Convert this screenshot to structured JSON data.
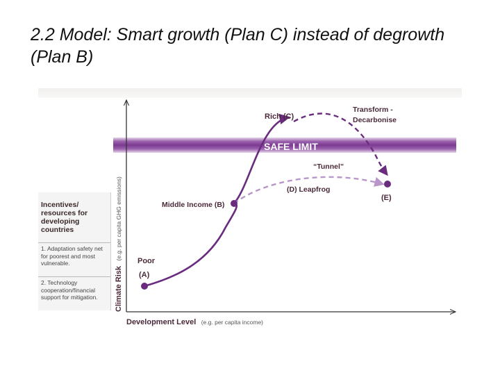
{
  "slide": {
    "title": "2.2 Model: Smart growth (Plan C) instead of degrowth (Plan B)"
  },
  "diagram": {
    "y_axis_label": "Climate Risk",
    "y_axis_note": "(e.g. per capita GHG emissions)",
    "x_axis_label": "Development Level",
    "x_axis_note": "(e.g. per capita income)",
    "safe_limit_label": "SAFE LIMIT",
    "nodes": {
      "poor": "Poor",
      "poor_code": "(A)",
      "middle_income": "Middle Income (B)",
      "rich": "Rich (C)",
      "transform_line1": "Transform -",
      "transform_line2": "Decarbonise",
      "tunnel": "“Tunnel”",
      "leapfrog": "(D) Leapfrog",
      "end_point": "(E)"
    },
    "legend": {
      "title": "Incentives/ resources for developing countries",
      "item1": "1. Adaptation safety net for poorest and most vulnerable.",
      "item2": "2. Technology cooperation/financial support for mitigation."
    },
    "colors": {
      "main_path": "#6a2c7e",
      "tunnel_path": "#b896c9",
      "safe_limit_band": "#7b3a91",
      "axis": "#333333"
    }
  }
}
